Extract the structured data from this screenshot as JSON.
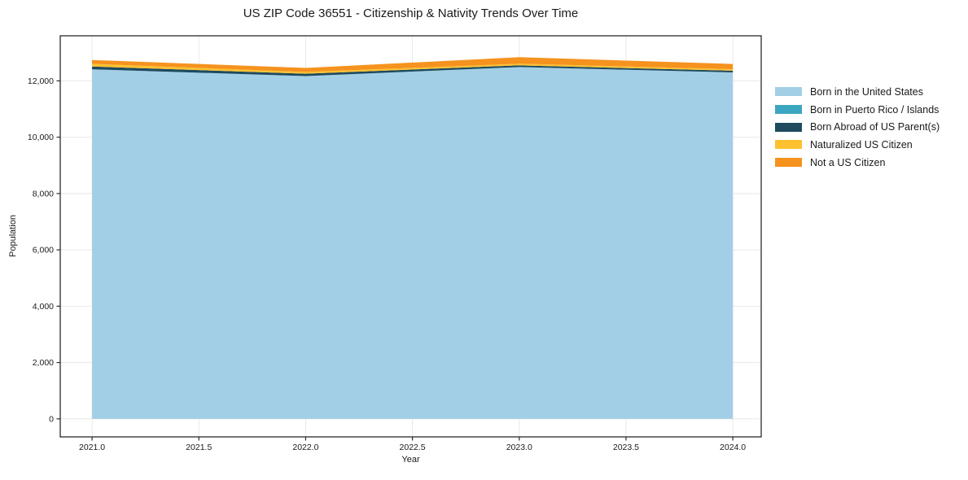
{
  "title": "US ZIP Code 36551 - Citizenship & Nativity Trends Over Time",
  "chart_data": {
    "type": "area",
    "stacked": true,
    "title": "US ZIP Code 36551 - Citizenship & Nativity Trends Over Time",
    "xlabel": "Year",
    "ylabel": "Population",
    "x": [
      2021,
      2022,
      2023,
      2024
    ],
    "series": [
      {
        "name": "Born in the United States",
        "color": "#A3CFE6",
        "values": [
          12410,
          12170,
          12490,
          12300
        ]
      },
      {
        "name": "Born in Puerto Rico / Islands",
        "color": "#3BA6BF",
        "values": [
          0,
          0,
          0,
          0
        ]
      },
      {
        "name": "Born Abroad of US Parent(s)",
        "color": "#1F4A5F",
        "values": [
          100,
          85,
          60,
          60
        ]
      },
      {
        "name": "Naturalized US Citizen",
        "color": "#FDC12F",
        "values": [
          95,
          60,
          60,
          55
        ]
      },
      {
        "name": "Not a US Citizen",
        "color": "#F6921E",
        "values": [
          135,
          145,
          230,
          185
        ]
      }
    ],
    "xlim": [
      2020.851,
      2024.133
    ],
    "ylim": [
      -640,
      13600
    ],
    "xticks": [
      2021.0,
      2021.5,
      2022.0,
      2022.5,
      2023.0,
      2023.5,
      2024.0
    ],
    "xtick_labels": [
      "2021.0",
      "2021.5",
      "2022.0",
      "2022.5",
      "2023.0",
      "2023.5",
      "2024.0"
    ],
    "yticks": [
      0,
      2000,
      4000,
      6000,
      8000,
      10000,
      12000
    ],
    "ytick_labels": [
      "0",
      "2,000",
      "4,000",
      "6,000",
      "8,000",
      "10,000",
      "12,000"
    ],
    "grid": true,
    "legend_position": "right"
  },
  "style_colors": {
    "spine": "#2b2b2b",
    "grid": "#e8e8e8",
    "tick_text": "#1a1a1a"
  }
}
